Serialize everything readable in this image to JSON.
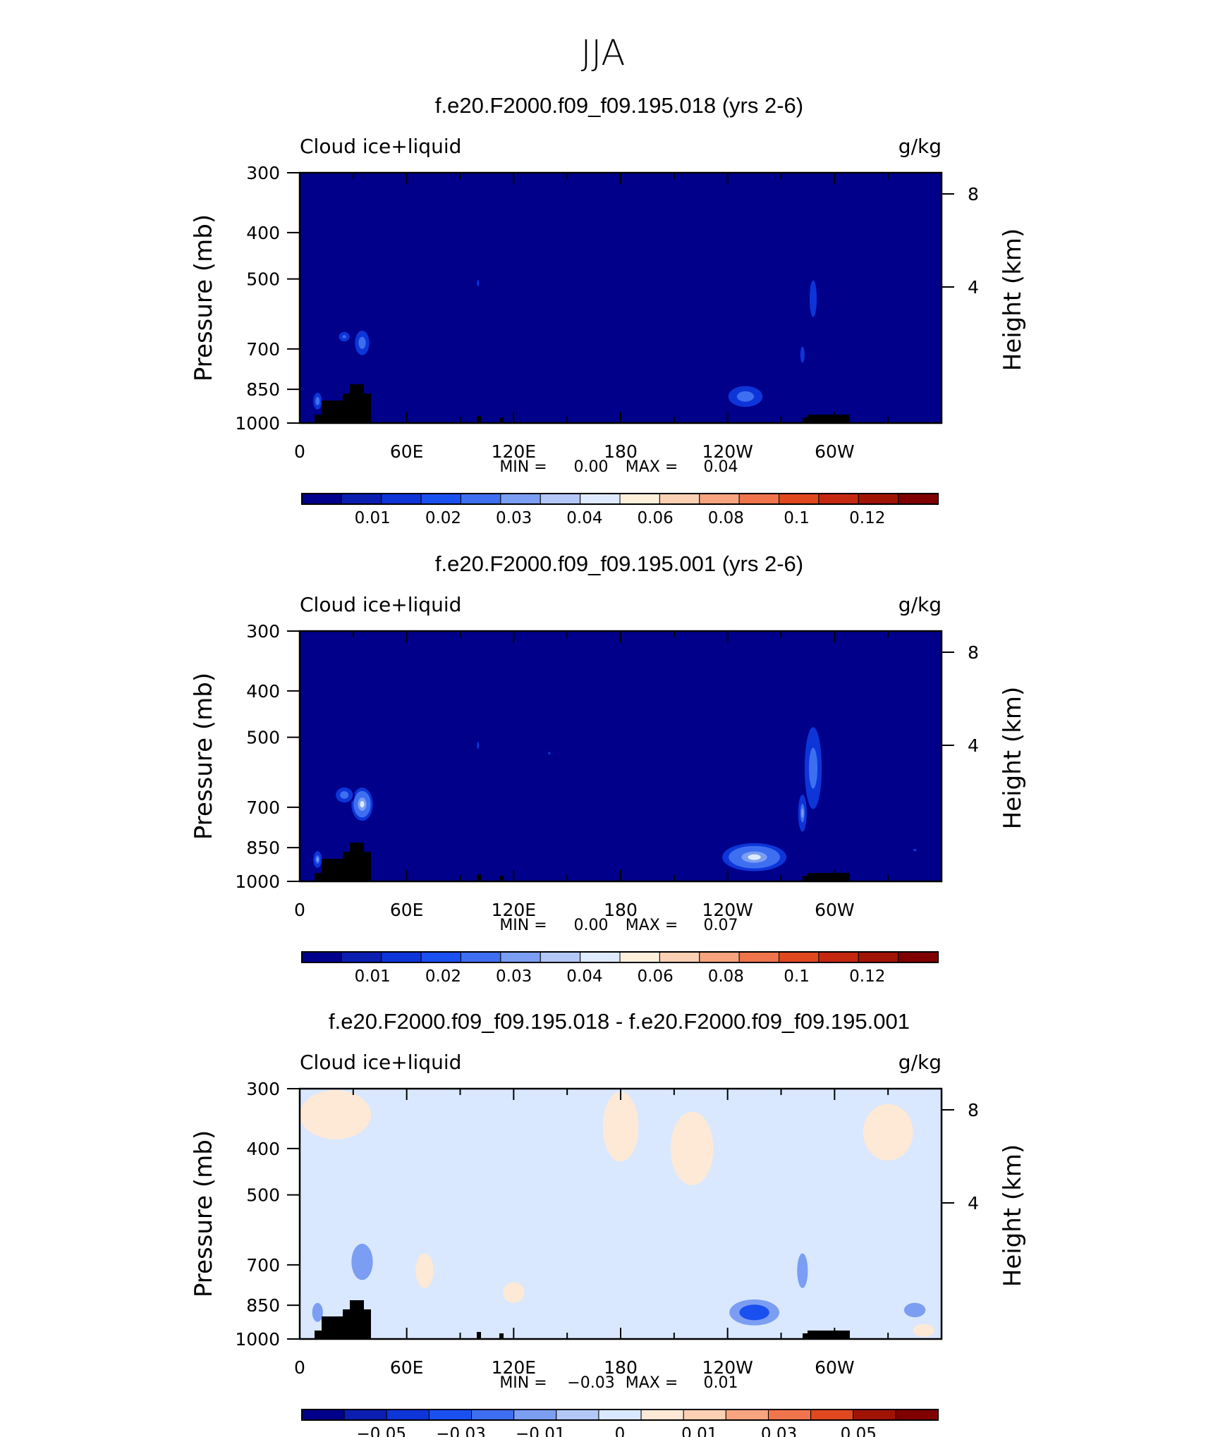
{
  "figure": {
    "title": "JJA"
  },
  "chart_data": [
    {
      "type": "heatmap",
      "title": "f.e20.F2000.f09_f09.195.018 (yrs 2-6)",
      "subtitle_left": "Cloud ice+liquid",
      "subtitle_right": "g/kg",
      "ylabel": "Pressure (mb)",
      "ylabel_right": "Height (km)",
      "x_ticks": [
        "0",
        "60E",
        "120E",
        "180",
        "120W",
        "60W"
      ],
      "y_ticks": [
        "300",
        "400",
        "500",
        "700",
        "850",
        "1000"
      ],
      "y_right_ticks": [
        "8",
        "4"
      ],
      "stats": {
        "min_label": "MIN =",
        "min": "0.00",
        "max_label": "MAX =",
        "max": "0.04"
      },
      "colorbar_labels": [
        "0.01",
        "0.02",
        "0.03",
        "0.04",
        "0.06",
        "0.08",
        "0.1",
        "0.12"
      ],
      "colorbar_colors": [
        "#00008b",
        "#0a1fb0",
        "#0d35d8",
        "#1a4ff0",
        "#3d6ff0",
        "#7b9ef3",
        "#b3c8f7",
        "#deeaff",
        "#fff0dc",
        "#fcd0b2",
        "#f8a47e",
        "#f0744c",
        "#e04820",
        "#c42810",
        "#a01406",
        "#800000"
      ],
      "background": "#00008b",
      "features": [
        {
          "x": 35,
          "p": 680,
          "rx": 5,
          "rp": 50,
          "level": 0.025
        },
        {
          "x": 25,
          "p": 660,
          "rx": 5,
          "rp": 25,
          "level": 0.02
        },
        {
          "x": 10,
          "p": 900,
          "rx": 3,
          "rp": 45,
          "level": 0.025
        },
        {
          "x": 100,
          "p": 510,
          "rx": 3,
          "rp": 40,
          "level": 0.01
        },
        {
          "x": 250,
          "p": 880,
          "rx": 12,
          "rp": 55,
          "level": 0.025
        },
        {
          "x": 288,
          "p": 550,
          "rx": 5,
          "rp": 120,
          "level": 0.015
        },
        {
          "x": 282,
          "p": 720,
          "rx": 3,
          "rp": 70,
          "level": 0.015
        }
      ]
    },
    {
      "type": "heatmap",
      "title": "f.e20.F2000.f09_f09.195.001 (yrs 2-6)",
      "subtitle_left": "Cloud ice+liquid",
      "subtitle_right": "g/kg",
      "ylabel": "Pressure (mb)",
      "ylabel_right": "Height (km)",
      "x_ticks": [
        "0",
        "60E",
        "120E",
        "180",
        "120W",
        "60W"
      ],
      "y_ticks": [
        "300",
        "400",
        "500",
        "700",
        "850",
        "1000"
      ],
      "y_right_ticks": [
        "8",
        "4"
      ],
      "stats": {
        "min_label": "MIN =",
        "min": "0.00",
        "max_label": "MAX =",
        "max": "0.07"
      },
      "colorbar_labels": [
        "0.01",
        "0.02",
        "0.03",
        "0.04",
        "0.06",
        "0.08",
        "0.1",
        "0.12"
      ],
      "colorbar_colors": [
        "#00008b",
        "#0a1fb0",
        "#0d35d8",
        "#1a4ff0",
        "#3d6ff0",
        "#7b9ef3",
        "#b3c8f7",
        "#deeaff",
        "#fff0dc",
        "#fcd0b2",
        "#f8a47e",
        "#f0744c",
        "#e04820",
        "#c42810",
        "#a01406",
        "#800000"
      ],
      "background": "#00008b",
      "features": [
        {
          "x": 35,
          "p": 690,
          "rx": 6,
          "rp": 55,
          "level": 0.045
        },
        {
          "x": 25,
          "p": 660,
          "rx": 6,
          "rp": 30,
          "level": 0.025
        },
        {
          "x": 10,
          "p": 900,
          "rx": 3,
          "rp": 45,
          "level": 0.03
        },
        {
          "x": 100,
          "p": 520,
          "rx": 3,
          "rp": 45,
          "level": 0.01
        },
        {
          "x": 140,
          "p": 540,
          "rx": 3,
          "rp": 20,
          "level": 0.01
        },
        {
          "x": 255,
          "p": 890,
          "rx": 18,
          "rp": 60,
          "level": 0.045
        },
        {
          "x": 288,
          "p": 580,
          "rx": 6,
          "rp": 140,
          "level": 0.025
        },
        {
          "x": 282,
          "p": 720,
          "rx": 3,
          "rp": 80,
          "level": 0.03
        },
        {
          "x": 345,
          "p": 860,
          "rx": 5,
          "rp": 25,
          "level": 0.01
        }
      ]
    },
    {
      "type": "heatmap",
      "title": "f.e20.F2000.f09_f09.195.018 - f.e20.F2000.f09_f09.195.001",
      "subtitle_left": "Cloud ice+liquid",
      "subtitle_right": "g/kg",
      "ylabel": "Pressure (mb)",
      "ylabel_right": "Height (km)",
      "x_ticks": [
        "0",
        "60E",
        "120E",
        "180",
        "120W",
        "60W"
      ],
      "y_ticks": [
        "300",
        "400",
        "500",
        "700",
        "850",
        "1000"
      ],
      "y_right_ticks": [
        "8",
        "4"
      ],
      "stats": {
        "min_label": "MIN =",
        "min": "−0.03",
        "max_label": "MAX =",
        "max": "0.01"
      },
      "colorbar_labels": [
        "−0.05",
        "−0.03",
        "−0.01",
        "0",
        "0.01",
        "0.03",
        "0.05"
      ],
      "colorbar_colors": [
        "#00008b",
        "#0a1fb0",
        "#0d35d8",
        "#1a4ff0",
        "#3d6ff0",
        "#7b9ef3",
        "#b3c8f7",
        "#d9e8ff",
        "#fde9d6",
        "#fcd0b2",
        "#f8a47e",
        "#f0744c",
        "#e04820",
        "#a01406",
        "#800000"
      ],
      "background": "#d9e8ff",
      "features": [
        {
          "x": 35,
          "p": 690,
          "rx": 6,
          "rp": 60,
          "level": -0.008
        },
        {
          "x": 10,
          "p": 880,
          "rx": 3,
          "rp": 40,
          "level": -0.006
        },
        {
          "x": 255,
          "p": 880,
          "rx": 14,
          "rp": 55,
          "level": -0.02
        },
        {
          "x": 282,
          "p": 720,
          "rx": 3,
          "rp": 60,
          "level": -0.006
        },
        {
          "x": 345,
          "p": 870,
          "rx": 6,
          "rp": 30,
          "level": -0.006
        },
        {
          "x": 20,
          "p": 340,
          "rx": 20,
          "rp": 40,
          "level": 0.004
        },
        {
          "x": 180,
          "p": 360,
          "rx": 10,
          "rp": 60,
          "level": 0.004
        },
        {
          "x": 220,
          "p": 400,
          "rx": 12,
          "rp": 70,
          "level": 0.004
        },
        {
          "x": 70,
          "p": 720,
          "rx": 5,
          "rp": 60,
          "level": 0.004
        },
        {
          "x": 330,
          "p": 370,
          "rx": 14,
          "rp": 50,
          "level": 0.004
        },
        {
          "x": 120,
          "p": 800,
          "rx": 6,
          "rp": 40,
          "level": 0.004
        },
        {
          "x": 350,
          "p": 960,
          "rx": 6,
          "rp": 30,
          "level": 0.004
        }
      ]
    }
  ]
}
